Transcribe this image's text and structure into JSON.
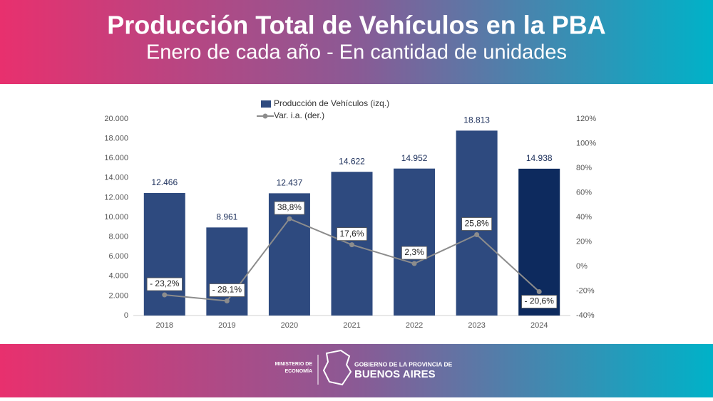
{
  "chart_data": {
    "type": "bar_line",
    "title": "Producción Total de Vehículos en la PBA",
    "subtitle": "Enero de cada año - En cantidad de unidades",
    "categories": [
      "2018",
      "2019",
      "2020",
      "2021",
      "2022",
      "2023",
      "2024"
    ],
    "series": [
      {
        "name": "Producción de Vehículos (izq.)",
        "type": "bar",
        "color": "#2e4a7f",
        "colors": [
          "#2e4a7f",
          "#2e4a7f",
          "#2e4a7f",
          "#2e4a7f",
          "#2e4a7f",
          "#2e4a7f",
          "#0d2a5e"
        ],
        "values": [
          12466,
          8961,
          12437,
          14622,
          14952,
          18813,
          14938
        ],
        "value_labels": [
          "12.466",
          "8.961",
          "12.437",
          "14.622",
          "14.952",
          "18.813",
          "14.938"
        ]
      },
      {
        "name": "Var. i.a. (der.)",
        "type": "line",
        "axis": "y2",
        "color": "#8c8c8c",
        "values": [
          -23.2,
          -28.1,
          38.8,
          17.6,
          2.3,
          25.8,
          -20.6
        ],
        "value_labels": [
          "- 23,2%",
          "- 28,1%",
          "38,8%",
          "17,6%",
          "2,3%",
          "25,8%",
          "- 20,6%"
        ]
      }
    ],
    "ylim": [
      0,
      20000
    ],
    "yticks": [
      0,
      {
        "value": 2000,
        "label": "2.000"
      },
      {
        "value": 4000,
        "label": "4.000"
      },
      {
        "value": 6000,
        "label": "6.000"
      },
      {
        "value": 8000,
        "label": "8.000"
      },
      {
        "value": 10000,
        "label": "10.000"
      },
      {
        "value": 12000,
        "label": "12.000"
      },
      {
        "value": 14000,
        "label": "14.000"
      },
      {
        "value": 16000,
        "label": "16.000"
      },
      {
        "value": 18000,
        "label": "18.000"
      },
      {
        "value": 20000,
        "label": "20.000"
      }
    ],
    "y2lim": [
      -40,
      120
    ],
    "y2ticks": [
      {
        "value": -40,
        "label": "-40%"
      },
      {
        "value": -20,
        "label": "-20%"
      },
      {
        "value": 0,
        "label": "0%"
      },
      {
        "value": 20,
        "label": "20%"
      },
      {
        "value": 40,
        "label": "40%"
      },
      {
        "value": 60,
        "label": "60%"
      },
      {
        "value": 80,
        "label": "80%"
      },
      {
        "value": 100,
        "label": "100%"
      },
      {
        "value": 120,
        "label": "120%"
      }
    ],
    "grid": false
  },
  "footer": {
    "ministry": [
      "MINISTERIO DE",
      "ECONOMÍA"
    ],
    "government": "GOBIERNO DE LA PROVINCIA DE",
    "province": "BUENOS AIRES"
  }
}
